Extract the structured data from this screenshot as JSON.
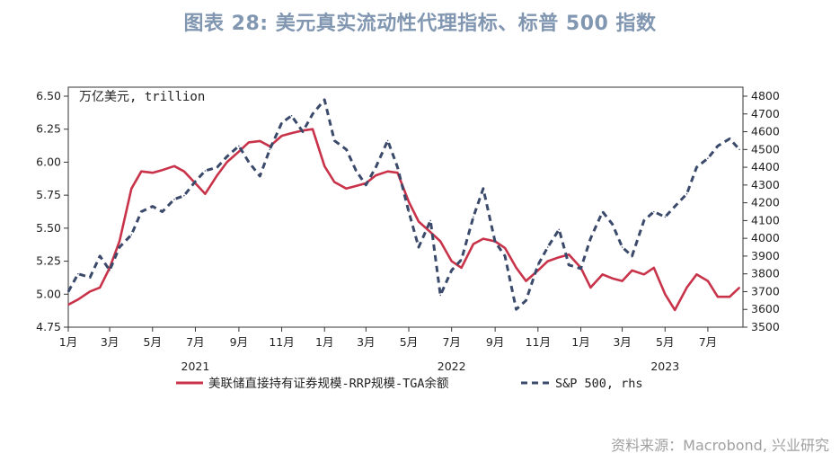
{
  "title": "图表 28: 美元真实流动性代理指标、标普 500 指数",
  "source": "资料来源：Macrobond, 兴业研究",
  "chart_data": {
    "type": "line",
    "left_axis": {
      "unit_label": "万亿美元, trillion",
      "ylim": [
        4.75,
        6.5
      ],
      "ticks": [
        "4.75",
        "5.00",
        "5.25",
        "5.50",
        "5.75",
        "6.00",
        "6.25",
        "6.50"
      ]
    },
    "right_axis": {
      "ylim": [
        3500,
        4800
      ],
      "ticks": [
        "3500",
        "3600",
        "3700",
        "3800",
        "3900",
        "4000",
        "4100",
        "4200",
        "4300",
        "4400",
        "4500",
        "4600",
        "4700",
        "4800"
      ]
    },
    "x_axis": {
      "range": [
        "2021-01",
        "2023-08"
      ],
      "month_labels": [
        {
          "label": "1月",
          "date": "2021-01"
        },
        {
          "label": "3月",
          "date": "2021-03"
        },
        {
          "label": "5月",
          "date": "2021-05"
        },
        {
          "label": "7月",
          "date": "2021-07"
        },
        {
          "label": "9月",
          "date": "2021-09"
        },
        {
          "label": "11月",
          "date": "2021-11"
        },
        {
          "label": "1月",
          "date": "2022-01"
        },
        {
          "label": "3月",
          "date": "2022-03"
        },
        {
          "label": "5月",
          "date": "2022-05"
        },
        {
          "label": "7月",
          "date": "2022-07"
        },
        {
          "label": "9月",
          "date": "2022-09"
        },
        {
          "label": "11月",
          "date": "2022-11"
        },
        {
          "label": "1月",
          "date": "2023-01"
        },
        {
          "label": "3月",
          "date": "2023-03"
        },
        {
          "label": "5月",
          "date": "2023-05"
        },
        {
          "label": "7月",
          "date": "2023-07"
        }
      ],
      "year_labels": [
        {
          "label": "2021",
          "date": "2021-07"
        },
        {
          "label": "2022",
          "date": "2022-07"
        },
        {
          "label": "2023",
          "date": "2023-05"
        }
      ]
    },
    "series": [
      {
        "name": "美联储直接持有证券规模-RRP规模-TGA余额",
        "axis": "left",
        "color": "#c8334a",
        "style": "solid",
        "points": [
          [
            "2021-01-01",
            4.92
          ],
          [
            "2021-01-15",
            4.96
          ],
          [
            "2021-02-01",
            5.02
          ],
          [
            "2021-02-15",
            5.05
          ],
          [
            "2021-03-01",
            5.2
          ],
          [
            "2021-03-15",
            5.4
          ],
          [
            "2021-04-01",
            5.8
          ],
          [
            "2021-04-15",
            5.93
          ],
          [
            "2021-05-01",
            5.92
          ],
          [
            "2021-05-15",
            5.94
          ],
          [
            "2021-06-01",
            5.97
          ],
          [
            "2021-06-15",
            5.93
          ],
          [
            "2021-07-01",
            5.84
          ],
          [
            "2021-07-15",
            5.76
          ],
          [
            "2021-08-01",
            5.9
          ],
          [
            "2021-08-15",
            6.0
          ],
          [
            "2021-09-01",
            6.08
          ],
          [
            "2021-09-15",
            6.15
          ],
          [
            "2021-10-01",
            6.16
          ],
          [
            "2021-10-15",
            6.12
          ],
          [
            "2021-11-01",
            6.2
          ],
          [
            "2021-11-15",
            6.22
          ],
          [
            "2021-12-01",
            6.24
          ],
          [
            "2021-12-15",
            6.25
          ],
          [
            "2022-01-01",
            5.97
          ],
          [
            "2022-01-15",
            5.85
          ],
          [
            "2022-02-01",
            5.8
          ],
          [
            "2022-02-15",
            5.82
          ],
          [
            "2022-03-01",
            5.84
          ],
          [
            "2022-03-15",
            5.9
          ],
          [
            "2022-04-01",
            5.93
          ],
          [
            "2022-04-15",
            5.92
          ],
          [
            "2022-05-01",
            5.7
          ],
          [
            "2022-05-15",
            5.55
          ],
          [
            "2022-06-01",
            5.47
          ],
          [
            "2022-06-15",
            5.4
          ],
          [
            "2022-07-01",
            5.25
          ],
          [
            "2022-07-15",
            5.2
          ],
          [
            "2022-08-01",
            5.38
          ],
          [
            "2022-08-15",
            5.42
          ],
          [
            "2022-09-01",
            5.4
          ],
          [
            "2022-09-15",
            5.35
          ],
          [
            "2022-10-01",
            5.2
          ],
          [
            "2022-10-15",
            5.1
          ],
          [
            "2022-11-01",
            5.18
          ],
          [
            "2022-11-15",
            5.25
          ],
          [
            "2022-12-01",
            5.28
          ],
          [
            "2022-12-15",
            5.3
          ],
          [
            "2023-01-01",
            5.2
          ],
          [
            "2023-01-15",
            5.05
          ],
          [
            "2023-02-01",
            5.15
          ],
          [
            "2023-02-15",
            5.12
          ],
          [
            "2023-03-01",
            5.1
          ],
          [
            "2023-03-15",
            5.18
          ],
          [
            "2023-04-01",
            5.15
          ],
          [
            "2023-04-15",
            5.2
          ],
          [
            "2023-05-01",
            5.0
          ],
          [
            "2023-05-15",
            4.88
          ],
          [
            "2023-06-01",
            5.05
          ],
          [
            "2023-06-15",
            5.15
          ],
          [
            "2023-07-01",
            5.1
          ],
          [
            "2023-07-15",
            4.98
          ],
          [
            "2023-08-01",
            4.98
          ],
          [
            "2023-08-15",
            5.05
          ]
        ]
      },
      {
        "name": "S&P 500, rhs",
        "axis": "right",
        "color": "#3b4a6b",
        "style": "dashed",
        "points": [
          [
            "2021-01-01",
            3700
          ],
          [
            "2021-01-15",
            3800
          ],
          [
            "2021-02-01",
            3780
          ],
          [
            "2021-02-15",
            3900
          ],
          [
            "2021-03-01",
            3820
          ],
          [
            "2021-03-15",
            3950
          ],
          [
            "2021-04-01",
            4020
          ],
          [
            "2021-04-15",
            4150
          ],
          [
            "2021-05-01",
            4180
          ],
          [
            "2021-05-15",
            4150
          ],
          [
            "2021-06-01",
            4220
          ],
          [
            "2021-06-15",
            4240
          ],
          [
            "2021-07-01",
            4320
          ],
          [
            "2021-07-15",
            4380
          ],
          [
            "2021-08-01",
            4400
          ],
          [
            "2021-08-15",
            4460
          ],
          [
            "2021-09-01",
            4520
          ],
          [
            "2021-09-15",
            4430
          ],
          [
            "2021-10-01",
            4350
          ],
          [
            "2021-10-15",
            4500
          ],
          [
            "2021-11-01",
            4650
          ],
          [
            "2021-11-15",
            4690
          ],
          [
            "2021-12-01",
            4600
          ],
          [
            "2021-12-15",
            4700
          ],
          [
            "2022-01-01",
            4780
          ],
          [
            "2022-01-15",
            4550
          ],
          [
            "2022-02-01",
            4500
          ],
          [
            "2022-02-15",
            4380
          ],
          [
            "2022-03-01",
            4300
          ],
          [
            "2022-03-15",
            4400
          ],
          [
            "2022-04-01",
            4550
          ],
          [
            "2022-04-15",
            4400
          ],
          [
            "2022-05-01",
            4150
          ],
          [
            "2022-05-15",
            3950
          ],
          [
            "2022-06-01",
            4100
          ],
          [
            "2022-06-15",
            3680
          ],
          [
            "2022-07-01",
            3820
          ],
          [
            "2022-07-15",
            3880
          ],
          [
            "2022-08-01",
            4120
          ],
          [
            "2022-08-15",
            4280
          ],
          [
            "2022-09-01",
            3980
          ],
          [
            "2022-09-15",
            3900
          ],
          [
            "2022-10-01",
            3600
          ],
          [
            "2022-10-15",
            3650
          ],
          [
            "2022-11-01",
            3850
          ],
          [
            "2022-11-15",
            3950
          ],
          [
            "2022-12-01",
            4050
          ],
          [
            "2022-12-15",
            3850
          ],
          [
            "2023-01-01",
            3830
          ],
          [
            "2023-01-15",
            4000
          ],
          [
            "2023-02-01",
            4150
          ],
          [
            "2023-02-15",
            4080
          ],
          [
            "2023-03-01",
            3950
          ],
          [
            "2023-03-15",
            3900
          ],
          [
            "2023-04-01",
            4100
          ],
          [
            "2023-04-15",
            4150
          ],
          [
            "2023-05-01",
            4120
          ],
          [
            "2023-05-15",
            4180
          ],
          [
            "2023-06-01",
            4250
          ],
          [
            "2023-06-15",
            4400
          ],
          [
            "2023-07-01",
            4450
          ],
          [
            "2023-07-15",
            4520
          ],
          [
            "2023-08-01",
            4560
          ],
          [
            "2023-08-15",
            4500
          ]
        ]
      }
    ],
    "legend_placement": "bottom",
    "grid": false
  }
}
